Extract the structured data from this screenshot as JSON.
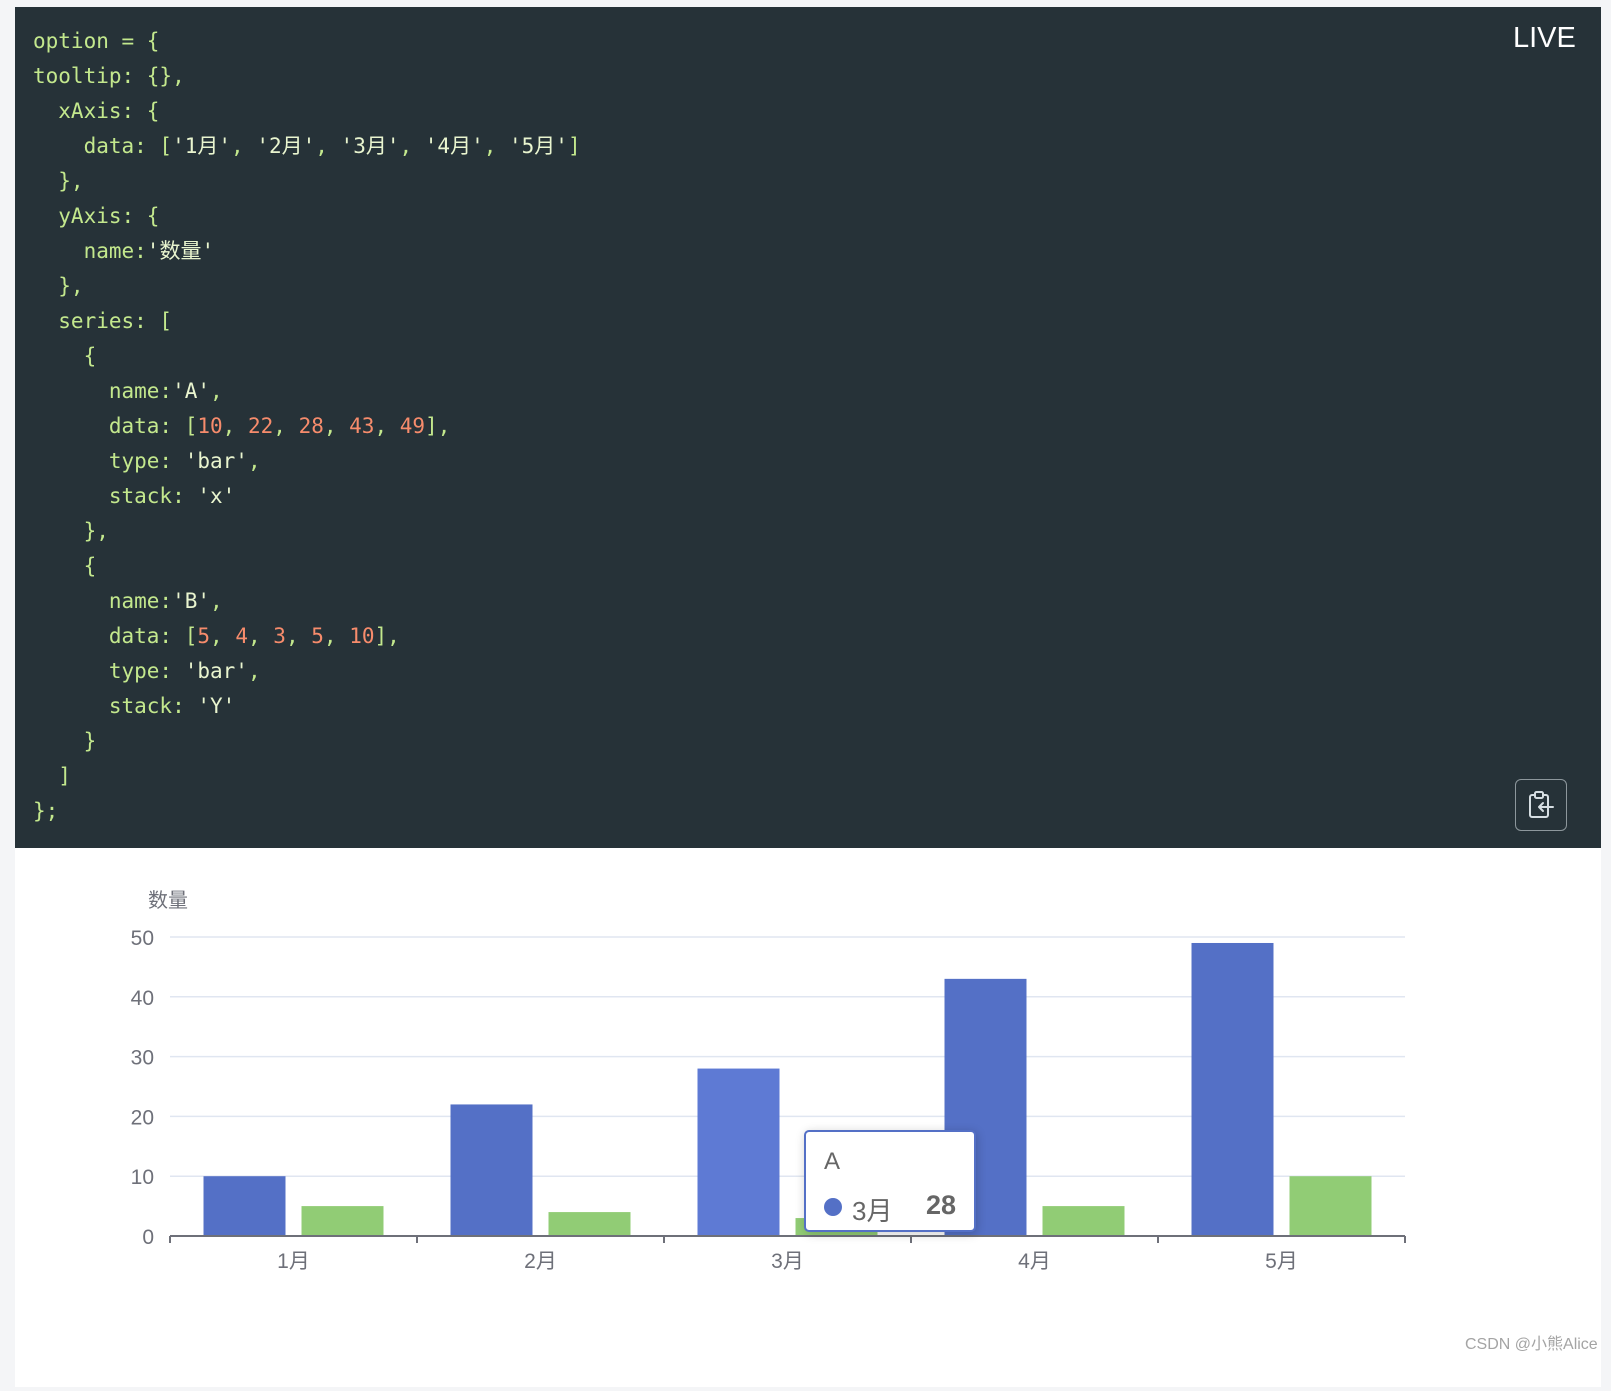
{
  "live_label": "LIVE",
  "code_lines": [
    [
      {
        "t": "option = {",
        "c": "#c3e88d"
      }
    ],
    [
      {
        "t": "tooltip: {},",
        "c": "#c3e88d"
      }
    ],
    [
      {
        "t": "  xAxis: {",
        "c": "#c3e88d"
      }
    ],
    [
      {
        "t": "    data: [",
        "c": "#c3e88d"
      },
      {
        "t": "'1月'",
        "c": "#e9f5cf"
      },
      {
        "t": ", ",
        "c": "#c3e88d"
      },
      {
        "t": "'2月'",
        "c": "#e9f5cf"
      },
      {
        "t": ", ",
        "c": "#c3e88d"
      },
      {
        "t": "'3月'",
        "c": "#e9f5cf"
      },
      {
        "t": ", ",
        "c": "#c3e88d"
      },
      {
        "t": "'4月'",
        "c": "#e9f5cf"
      },
      {
        "t": ", ",
        "c": "#c3e88d"
      },
      {
        "t": "'5月'",
        "c": "#e9f5cf"
      },
      {
        "t": "]",
        "c": "#c3e88d"
      }
    ],
    [
      {
        "t": "  },",
        "c": "#c3e88d"
      }
    ],
    [
      {
        "t": "  yAxis: {",
        "c": "#c3e88d"
      }
    ],
    [
      {
        "t": "    name:",
        "c": "#c3e88d"
      },
      {
        "t": "'数量'",
        "c": "#e9f5cf"
      }
    ],
    [
      {
        "t": "  },",
        "c": "#c3e88d"
      }
    ],
    [
      {
        "t": "  series: [",
        "c": "#c3e88d"
      }
    ],
    [
      {
        "t": "    {",
        "c": "#c3e88d"
      }
    ],
    [
      {
        "t": "      name:",
        "c": "#c3e88d"
      },
      {
        "t": "'A'",
        "c": "#e9f5cf"
      },
      {
        "t": ",",
        "c": "#c3e88d"
      }
    ],
    [
      {
        "t": "      data: [",
        "c": "#c3e88d"
      },
      {
        "t": "10",
        "c": "#f78c6c"
      },
      {
        "t": ", ",
        "c": "#c3e88d"
      },
      {
        "t": "22",
        "c": "#f78c6c"
      },
      {
        "t": ", ",
        "c": "#c3e88d"
      },
      {
        "t": "28",
        "c": "#f78c6c"
      },
      {
        "t": ", ",
        "c": "#c3e88d"
      },
      {
        "t": "43",
        "c": "#f78c6c"
      },
      {
        "t": ", ",
        "c": "#c3e88d"
      },
      {
        "t": "49",
        "c": "#f78c6c"
      },
      {
        "t": "],",
        "c": "#c3e88d"
      }
    ],
    [
      {
        "t": "      type: ",
        "c": "#c3e88d"
      },
      {
        "t": "'bar'",
        "c": "#e9f5cf"
      },
      {
        "t": ",",
        "c": "#c3e88d"
      }
    ],
    [
      {
        "t": "      stack: ",
        "c": "#c3e88d"
      },
      {
        "t": "'x'",
        "c": "#e9f5cf"
      }
    ],
    [
      {
        "t": "    },",
        "c": "#c3e88d"
      }
    ],
    [
      {
        "t": "    {",
        "c": "#c3e88d"
      }
    ],
    [
      {
        "t": "      name:",
        "c": "#c3e88d"
      },
      {
        "t": "'B'",
        "c": "#e9f5cf"
      },
      {
        "t": ",",
        "c": "#c3e88d"
      }
    ],
    [
      {
        "t": "      data: [",
        "c": "#c3e88d"
      },
      {
        "t": "5",
        "c": "#f78c6c"
      },
      {
        "t": ", ",
        "c": "#c3e88d"
      },
      {
        "t": "4",
        "c": "#f78c6c"
      },
      {
        "t": ", ",
        "c": "#c3e88d"
      },
      {
        "t": "3",
        "c": "#f78c6c"
      },
      {
        "t": ", ",
        "c": "#c3e88d"
      },
      {
        "t": "5",
        "c": "#f78c6c"
      },
      {
        "t": ", ",
        "c": "#c3e88d"
      },
      {
        "t": "10",
        "c": "#f78c6c"
      },
      {
        "t": "],",
        "c": "#c3e88d"
      }
    ],
    [
      {
        "t": "      type: ",
        "c": "#c3e88d"
      },
      {
        "t": "'bar'",
        "c": "#e9f5cf"
      },
      {
        "t": ",",
        "c": "#c3e88d"
      }
    ],
    [
      {
        "t": "      stack: ",
        "c": "#c3e88d"
      },
      {
        "t": "'Y'",
        "c": "#e9f5cf"
      }
    ],
    [
      {
        "t": "    }",
        "c": "#c3e88d"
      }
    ],
    [
      {
        "t": "  ]",
        "c": "#c3e88d"
      }
    ],
    [
      {
        "t": "};",
        "c": "#c3e88d"
      }
    ]
  ],
  "copy_button_icon": "clipboard-copy-icon",
  "chart_data": {
    "type": "bar",
    "title": "",
    "xlabel": "",
    "ylabel": "数量",
    "categories": [
      "1月",
      "2月",
      "3月",
      "4月",
      "5月"
    ],
    "series": [
      {
        "name": "A",
        "values": [
          10,
          22,
          28,
          43,
          49
        ],
        "color": "#5470c6"
      },
      {
        "name": "B",
        "values": [
          5,
          4,
          3,
          5,
          10
        ],
        "color": "#91cc75"
      }
    ],
    "ylim": [
      0,
      50
    ],
    "yticks": [
      0,
      10,
      20,
      30,
      40,
      50
    ],
    "grid": true,
    "legend": "none",
    "highlighted": {
      "series": "A",
      "category": "3月",
      "color": "#5e7ad4"
    }
  },
  "tooltip": {
    "series": "A",
    "category": "3月",
    "value": "28"
  },
  "watermark": "CSDN @小熊Alice"
}
